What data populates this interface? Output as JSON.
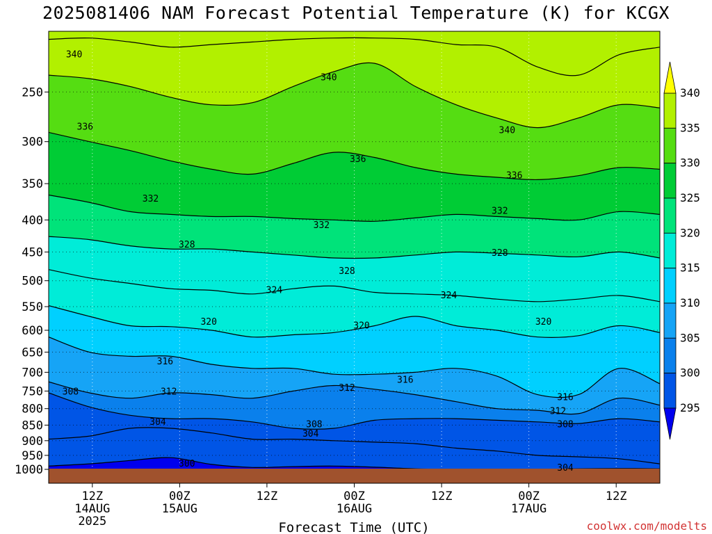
{
  "title": "2025081406 NAM Forecast Potential Temperature (K) for KCGX",
  "credit": "coolwx.com/modelts",
  "chart_data": {
    "type": "heatmap",
    "title": "2025081406 NAM Forecast Potential Temperature (K) for KCGX",
    "xlabel": "Forecast Time (UTC)",
    "ylabel": "",
    "x_ticks": [
      {
        "hour": 6,
        "lines": [
          "12Z",
          "14AUG",
          "2025"
        ]
      },
      {
        "hour": 18,
        "lines": [
          "00Z",
          "15AUG"
        ]
      },
      {
        "hour": 30,
        "lines": [
          "12Z"
        ]
      },
      {
        "hour": 42,
        "lines": [
          "00Z",
          "16AUG"
        ]
      },
      {
        "hour": 54,
        "lines": [
          "12Z"
        ]
      },
      {
        "hour": 66,
        "lines": [
          "00Z",
          "17AUG"
        ]
      },
      {
        "hour": 78,
        "lines": [
          "12Z"
        ]
      }
    ],
    "xlim_hours": [
      0,
      84
    ],
    "y_ticks": [
      250,
      300,
      350,
      400,
      450,
      500,
      550,
      600,
      650,
      700,
      750,
      800,
      850,
      900,
      950,
      1000
    ],
    "ylim_hpa": [
      200,
      1000
    ],
    "y_scale": "log",
    "grid": true,
    "colorbar": {
      "levels": [
        295,
        300,
        305,
        310,
        315,
        320,
        325,
        330,
        335,
        340,
        345
      ],
      "colors": [
        "#0000ee",
        "#0055e6",
        "#0a80ec",
        "#16a4f6",
        "#00d0ff",
        "#00ecd8",
        "#00e37a",
        "#00cc35",
        "#55dd12",
        "#b2f000",
        "#ffff00"
      ]
    },
    "contour_interval": 4,
    "isentropes": [
      {
        "theta": 300,
        "hpa": [
          988,
          980,
          968,
          958,
          982,
          993,
          990,
          988,
          992,
          998,
          1000,
          1000,
          1000,
          998,
          997,
          998
        ]
      },
      {
        "theta": 304,
        "hpa": [
          895,
          885,
          860,
          860,
          875,
          895,
          895,
          900,
          905,
          910,
          925,
          935,
          950,
          955,
          962,
          980
        ]
      },
      {
        "theta": 308,
        "hpa": [
          755,
          795,
          820,
          830,
          830,
          840,
          860,
          860,
          835,
          830,
          830,
          835,
          840,
          845,
          830,
          840
        ]
      },
      {
        "theta": 312,
        "hpa": [
          725,
          755,
          770,
          755,
          760,
          770,
          750,
          735,
          745,
          760,
          780,
          800,
          805,
          815,
          770,
          790
        ]
      },
      {
        "theta": 316,
        "hpa": [
          615,
          650,
          660,
          660,
          680,
          690,
          690,
          705,
          705,
          700,
          690,
          710,
          760,
          760,
          690,
          730
        ]
      },
      {
        "theta": 320,
        "hpa": [
          548,
          570,
          590,
          592,
          600,
          615,
          610,
          605,
          590,
          570,
          590,
          600,
          615,
          612,
          590,
          605
        ]
      },
      {
        "theta": 324,
        "hpa": [
          480,
          495,
          505,
          515,
          518,
          525,
          515,
          510,
          522,
          525,
          528,
          535,
          540,
          535,
          528,
          540
        ]
      },
      {
        "theta": 328,
        "hpa": [
          425,
          430,
          440,
          445,
          445,
          450,
          455,
          460,
          460,
          455,
          450,
          452,
          455,
          458,
          450,
          460
        ]
      },
      {
        "theta": 332,
        "hpa": [
          365,
          375,
          388,
          392,
          395,
          395,
          398,
          400,
          402,
          397,
          392,
          395,
          398,
          400,
          388,
          392
        ]
      },
      {
        "theta": 336,
        "hpa": [
          290,
          300,
          310,
          322,
          332,
          338,
          325,
          312,
          318,
          330,
          338,
          342,
          345,
          340,
          330,
          332
        ]
      },
      {
        "theta": 340,
        "hpa": [
          235,
          238,
          245,
          255,
          262,
          260,
          245,
          232,
          225,
          245,
          262,
          275,
          285,
          275,
          262,
          265
        ]
      },
      {
        "theta": 344,
        "hpa": [
          206,
          205,
          208,
          212,
          210,
          208,
          206,
          205,
          205,
          206,
          210,
          212,
          228,
          235,
          218,
          212
        ]
      }
    ],
    "contour_labels": [
      {
        "text": "340",
        "hour": 3.5,
        "hpa": 218
      },
      {
        "text": "336",
        "hour": 5,
        "hpa": 284
      },
      {
        "text": "332",
        "hour": 14,
        "hpa": 370
      },
      {
        "text": "328",
        "hour": 19,
        "hpa": 438
      },
      {
        "text": "324",
        "hour": 31,
        "hpa": 518
      },
      {
        "text": "320",
        "hour": 22,
        "hpa": 582
      },
      {
        "text": "316",
        "hour": 16,
        "hpa": 673
      },
      {
        "text": "312",
        "hour": 16.5,
        "hpa": 752
      },
      {
        "text": "308",
        "hour": 3,
        "hpa": 752
      },
      {
        "text": "304",
        "hour": 15,
        "hpa": 840
      },
      {
        "text": "300",
        "hour": 19,
        "hpa": 980
      },
      {
        "text": "340",
        "hour": 38.5,
        "hpa": 237
      },
      {
        "text": "336",
        "hour": 42.5,
        "hpa": 320
      },
      {
        "text": "332",
        "hour": 37.5,
        "hpa": 408
      },
      {
        "text": "328",
        "hour": 41,
        "hpa": 483
      },
      {
        "text": "320",
        "hour": 43,
        "hpa": 590
      },
      {
        "text": "312",
        "hour": 41,
        "hpa": 742
      },
      {
        "text": "316",
        "hour": 49,
        "hpa": 720
      },
      {
        "text": "308",
        "hour": 36.5,
        "hpa": 848
      },
      {
        "text": "304",
        "hour": 36,
        "hpa": 878
      },
      {
        "text": "324",
        "hour": 55,
        "hpa": 528
      },
      {
        "text": "340",
        "hour": 63,
        "hpa": 288
      },
      {
        "text": "336",
        "hour": 64,
        "hpa": 340
      },
      {
        "text": "332",
        "hour": 62,
        "hpa": 387
      },
      {
        "text": "328",
        "hour": 62,
        "hpa": 452
      },
      {
        "text": "320",
        "hour": 68,
        "hpa": 582
      },
      {
        "text": "316",
        "hour": 71,
        "hpa": 768
      },
      {
        "text": "312",
        "hour": 70,
        "hpa": 808
      },
      {
        "text": "308",
        "hour": 71,
        "hpa": 848
      },
      {
        "text": "304",
        "hour": 71,
        "hpa": 995
      }
    ]
  }
}
